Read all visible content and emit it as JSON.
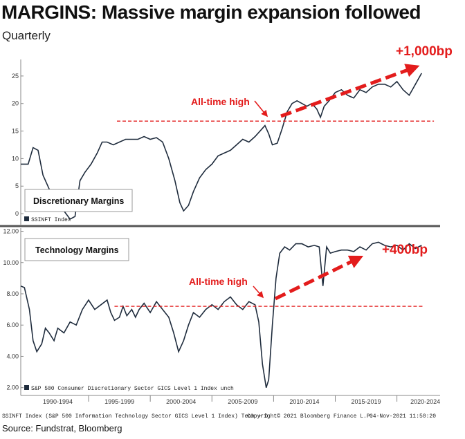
{
  "title": "MARGINS: Massive margin expansion followed",
  "subtitle": "Quarterly",
  "source": "Source: Fundstrat, Bloomberg",
  "colors": {
    "series": "#1f2c3d",
    "annotation": "#e31c1c",
    "divider": "#555555"
  },
  "chart_data": [
    {
      "type": "line",
      "title": "Discretionary Margins",
      "legend": "SSINFT Index",
      "ylim": [
        -2,
        28
      ],
      "yticks": [
        0,
        5,
        10,
        15,
        20,
        25
      ],
      "ytick_labels": [
        "0",
        "5",
        "10",
        "15",
        "20",
        "25"
      ],
      "reference_line": 16.8,
      "annotation": "All-time high",
      "callout": "+1,000bp",
      "x": [
        1989.0,
        1989.6,
        1990.0,
        1990.4,
        1990.8,
        1991.2,
        1991.6,
        1992.0,
        1992.5,
        1993.0,
        1993.4,
        1993.8,
        1994.2,
        1994.7,
        1995.2,
        1995.6,
        1996.0,
        1996.5,
        1997.0,
        1997.5,
        1998.0,
        1998.5,
        1999.0,
        1999.5,
        2000.0,
        2000.5,
        2001.0,
        2001.5,
        2001.9,
        2002.2,
        2002.6,
        2003.0,
        2003.5,
        2004.0,
        2004.5,
        2005.0,
        2005.5,
        2006.0,
        2006.5,
        2007.0,
        2007.5,
        2008.0,
        2008.4,
        2008.8,
        2009.1,
        2009.4,
        2009.8,
        2010.2,
        2010.6,
        2011.0,
        2011.4,
        2011.8,
        2012.2,
        2012.6,
        2013.0,
        2013.3,
        2013.6,
        2014.0,
        2014.5,
        2015.0,
        2015.5,
        2016.0,
        2016.5,
        2017.0,
        2017.5,
        2018.0,
        2018.5,
        2019.0,
        2019.5,
        2020.0,
        2020.5,
        2021.0,
        2021.5
      ],
      "y": [
        9.0,
        9.0,
        12.0,
        11.5,
        7.0,
        5.0,
        3.0,
        1.5,
        0.5,
        -1.0,
        -0.5,
        6.0,
        7.5,
        9.0,
        11.0,
        13.0,
        13.0,
        12.5,
        13.0,
        13.5,
        13.5,
        13.5,
        14.0,
        13.5,
        13.8,
        13.0,
        10.0,
        6.0,
        2.0,
        0.5,
        1.5,
        4.0,
        6.5,
        8.0,
        9.0,
        10.5,
        11.0,
        11.5,
        12.5,
        13.5,
        13.0,
        14.0,
        15.0,
        16.0,
        14.5,
        12.5,
        12.8,
        15.5,
        18.5,
        20.0,
        20.5,
        20.0,
        19.5,
        20.0,
        19.0,
        17.5,
        19.5,
        20.5,
        22.0,
        22.5,
        21.5,
        21.0,
        22.5,
        22.0,
        23.0,
        23.5,
        23.5,
        23.0,
        24.0,
        22.5,
        21.5,
        23.5,
        25.5
      ]
    },
    {
      "type": "line",
      "title": "Technology Margins",
      "legend": "S&P 500 Consumer Discretionary Sector GICS Level 1 Index  unch",
      "ylim": [
        1.5,
        12.2
      ],
      "yticks": [
        2,
        4,
        6,
        8,
        10,
        12
      ],
      "ytick_labels": [
        "2.00",
        "4.00",
        "6.00",
        "8.00",
        "10.00",
        "12.00"
      ],
      "reference_line": 7.2,
      "annotation": "All-time high",
      "callout": "+400bp",
      "x": [
        1989.0,
        1989.3,
        1989.7,
        1990.0,
        1990.3,
        1990.7,
        1991.0,
        1991.3,
        1991.7,
        1992.0,
        1992.5,
        1993.0,
        1993.5,
        1994.0,
        1994.5,
        1995.0,
        1995.5,
        1996.0,
        1996.3,
        1996.6,
        1997.0,
        1997.3,
        1997.6,
        1998.0,
        1998.3,
        1998.6,
        1999.0,
        1999.5,
        2000.0,
        2000.5,
        2001.0,
        2001.4,
        2001.8,
        2002.2,
        2002.6,
        2003.0,
        2003.5,
        2004.0,
        2004.5,
        2005.0,
        2005.5,
        2006.0,
        2006.5,
        2007.0,
        2007.5,
        2008.0,
        2008.3,
        2008.6,
        2008.9,
        2009.1,
        2009.4,
        2009.7,
        2010.0,
        2010.4,
        2010.8,
        2011.3,
        2011.8,
        2012.3,
        2012.8,
        2013.2,
        2013.5,
        2013.8,
        2014.1,
        2014.5,
        2015.0,
        2015.5,
        2016.0,
        2016.5,
        2017.0,
        2017.5,
        2018.0,
        2018.5,
        2019.0,
        2019.5,
        2020.0,
        2020.5,
        2021.0,
        2021.5
      ],
      "y": [
        8.5,
        8.4,
        7.0,
        5.0,
        4.3,
        4.8,
        5.8,
        5.5,
        5.0,
        5.8,
        5.5,
        6.2,
        6.0,
        7.0,
        7.6,
        7.0,
        7.3,
        7.6,
        6.8,
        6.3,
        6.5,
        7.2,
        6.6,
        7.0,
        6.5,
        7.0,
        7.4,
        6.8,
        7.5,
        7.0,
        6.5,
        5.5,
        4.3,
        5.0,
        6.0,
        6.8,
        6.5,
        7.0,
        7.3,
        7.0,
        7.5,
        7.8,
        7.3,
        7.0,
        7.5,
        7.3,
        6.2,
        3.5,
        2.0,
        2.5,
        6.0,
        9.0,
        10.6,
        11.0,
        10.8,
        11.2,
        11.2,
        11.0,
        11.1,
        11.0,
        8.5,
        11.0,
        10.6,
        10.7,
        10.8,
        10.8,
        10.7,
        11.0,
        10.8,
        11.2,
        11.3,
        11.1,
        11.0,
        11.1,
        10.8,
        11.2,
        10.9,
        11.1
      ]
    }
  ],
  "x_axis": {
    "labels": [
      "1990-1994",
      "1995-1999",
      "2000-2004",
      "2005-2009",
      "2010-2014",
      "2015-2019",
      "2020-2024"
    ],
    "label_centers": [
      1992.0,
      1997.0,
      2002.0,
      2007.0,
      2012.0,
      2017.0,
      2021.8
    ],
    "dividers": [
      1994.5,
      1999.5,
      2004.5,
      2009.5,
      2014.5,
      2019.5
    ],
    "range": [
      1989.0,
      2023.0
    ]
  },
  "footer": {
    "left": "SSINFT Index (S&P 500 Information Technology Sector GICS Level 1 Index) Tech + D",
    "middle": "Copyright© 2021 Bloomberg Finance L.P.",
    "right": "04-Nov-2021 11:50:20"
  }
}
